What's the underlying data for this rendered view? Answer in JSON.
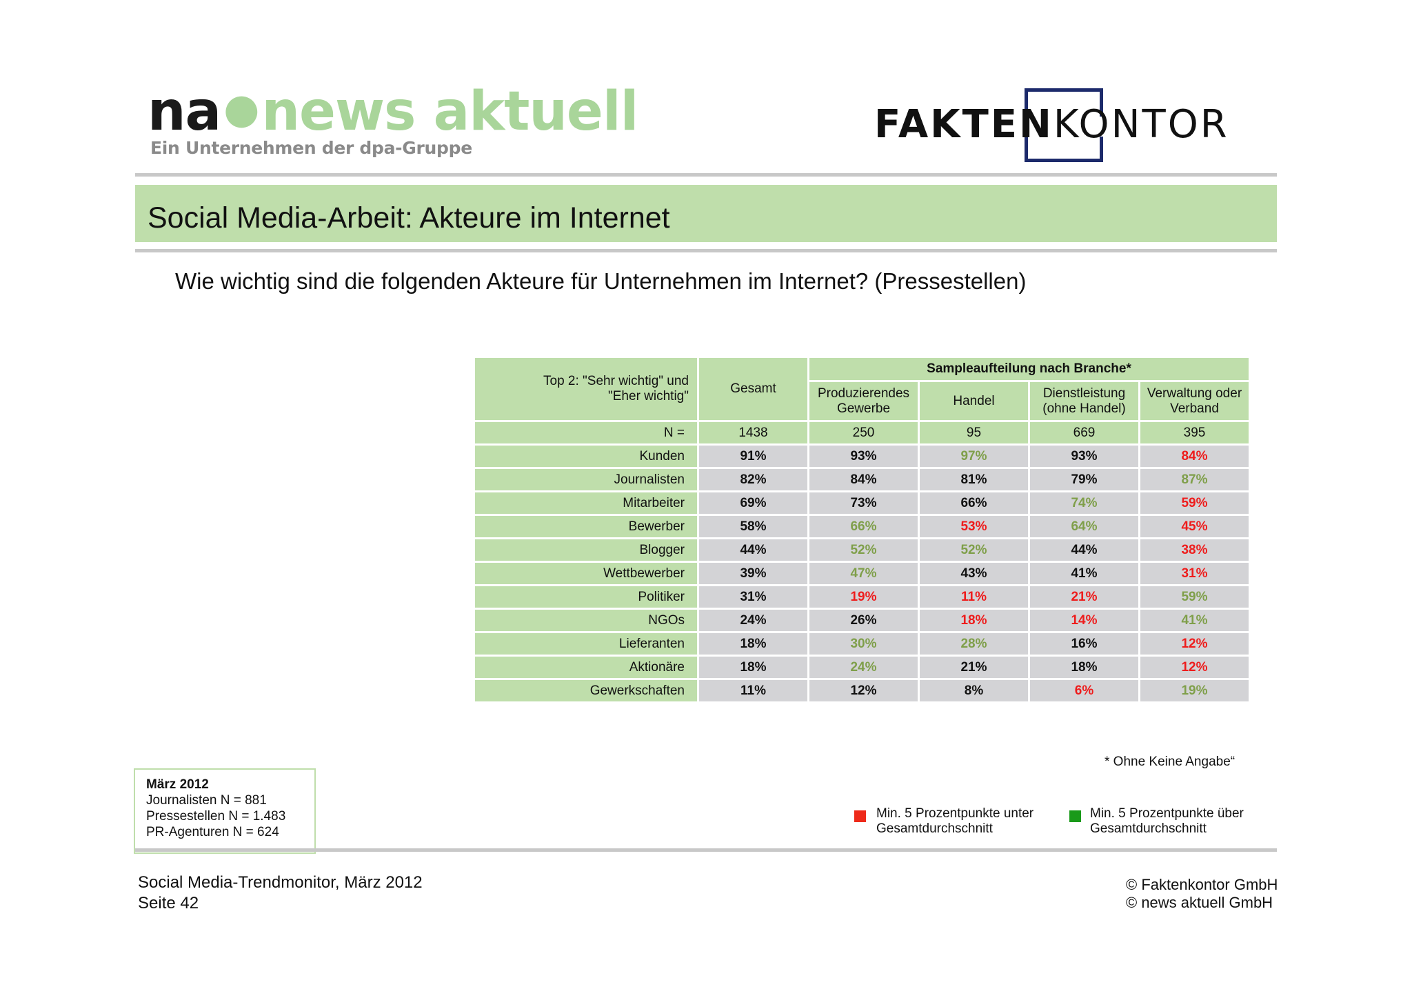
{
  "header": {
    "na_logo": {
      "prefix": "na",
      "name": "news aktuell",
      "subtitle": "Ein Unternehmen der dpa-Gruppe"
    },
    "fk_logo": {
      "bold": "FAKTEN",
      "light": "KONTOR"
    }
  },
  "title": "Social Media-Arbeit: Akteure im Internet",
  "question": "Wie wichtig sind die folgenden Akteure für Unternehmen im Internet? (Pressestellen)",
  "table": {
    "group_header": "Sampleaufteilung nach Branche*",
    "label_header_1": "Top 2: \"Sehr wichtig\" und",
    "label_header_2": "\"Eher wichtig\"",
    "columns": [
      {
        "line1": "Gesamt",
        "line2": ""
      },
      {
        "line1": "Produzierendes",
        "line2": "Gewerbe"
      },
      {
        "line1": "Handel",
        "line2": ""
      },
      {
        "line1": "Dienstleistung",
        "line2": "(ohne Handel)"
      },
      {
        "line1": "Verwaltung oder",
        "line2": "Verband"
      }
    ],
    "n_label": "N =",
    "n_values": [
      "1438",
      "250",
      "95",
      "669",
      "395"
    ],
    "rows": [
      {
        "label": "Kunden",
        "values": [
          "91%",
          "93%",
          "97%",
          "93%",
          "84%"
        ],
        "colors": [
          "black",
          "black",
          "green",
          "black",
          "red"
        ]
      },
      {
        "label": "Journalisten",
        "values": [
          "82%",
          "84%",
          "81%",
          "79%",
          "87%"
        ],
        "colors": [
          "black",
          "black",
          "black",
          "black",
          "green"
        ]
      },
      {
        "label": "Mitarbeiter",
        "values": [
          "69%",
          "73%",
          "66%",
          "74%",
          "59%"
        ],
        "colors": [
          "black",
          "black",
          "black",
          "green",
          "red"
        ]
      },
      {
        "label": "Bewerber",
        "values": [
          "58%",
          "66%",
          "53%",
          "64%",
          "45%"
        ],
        "colors": [
          "black",
          "green",
          "red",
          "green",
          "red"
        ]
      },
      {
        "label": "Blogger",
        "values": [
          "44%",
          "52%",
          "52%",
          "44%",
          "38%"
        ],
        "colors": [
          "black",
          "green",
          "green",
          "black",
          "red"
        ]
      },
      {
        "label": "Wettbewerber",
        "values": [
          "39%",
          "47%",
          "43%",
          "41%",
          "31%"
        ],
        "colors": [
          "black",
          "green",
          "black",
          "black",
          "red"
        ]
      },
      {
        "label": "Politiker",
        "values": [
          "31%",
          "19%",
          "11%",
          "21%",
          "59%"
        ],
        "colors": [
          "black",
          "red",
          "red",
          "red",
          "green"
        ]
      },
      {
        "label": "NGOs",
        "values": [
          "24%",
          "26%",
          "18%",
          "14%",
          "41%"
        ],
        "colors": [
          "black",
          "black",
          "red",
          "red",
          "green"
        ]
      },
      {
        "label": "Lieferanten",
        "values": [
          "18%",
          "30%",
          "28%",
          "16%",
          "12%"
        ],
        "colors": [
          "black",
          "green",
          "green",
          "black",
          "red"
        ]
      },
      {
        "label": "Aktionäre",
        "values": [
          "18%",
          "24%",
          "21%",
          "18%",
          "12%"
        ],
        "colors": [
          "black",
          "green",
          "black",
          "black",
          "red"
        ]
      },
      {
        "label": "Gewerkschaften",
        "values": [
          "11%",
          "12%",
          "8%",
          "6%",
          "19%"
        ],
        "colors": [
          "black",
          "black",
          "black",
          "red",
          "green"
        ]
      }
    ],
    "colors": {
      "label_bg": "#bfdeab",
      "value_bg": "#d3d3d6",
      "red": "#ee1c1c",
      "green": "#7f9f4a"
    }
  },
  "footnote": "* Ohne Keine Angabe“",
  "info_box": {
    "heading": "März 2012",
    "lines": [
      "Journalisten N = 881",
      "Pressestellen N = 1.483",
      "PR-Agenturen N = 624"
    ]
  },
  "legend": {
    "red": {
      "color": "#ee2a1a",
      "line1": "Min. 5 Prozentpunkte unter",
      "line2": "Gesamtdurchschnitt"
    },
    "green": {
      "color": "#1a9a1a",
      "line1": "Min. 5 Prozentpunkte über",
      "line2": "Gesamtdurchschnitt"
    }
  },
  "footer": {
    "left_1": "Social Media-Trendmonitor, März 2012",
    "left_2": "Seite 42",
    "right_1": "© Faktenkontor GmbH",
    "right_2": "© news aktuell GmbH"
  }
}
